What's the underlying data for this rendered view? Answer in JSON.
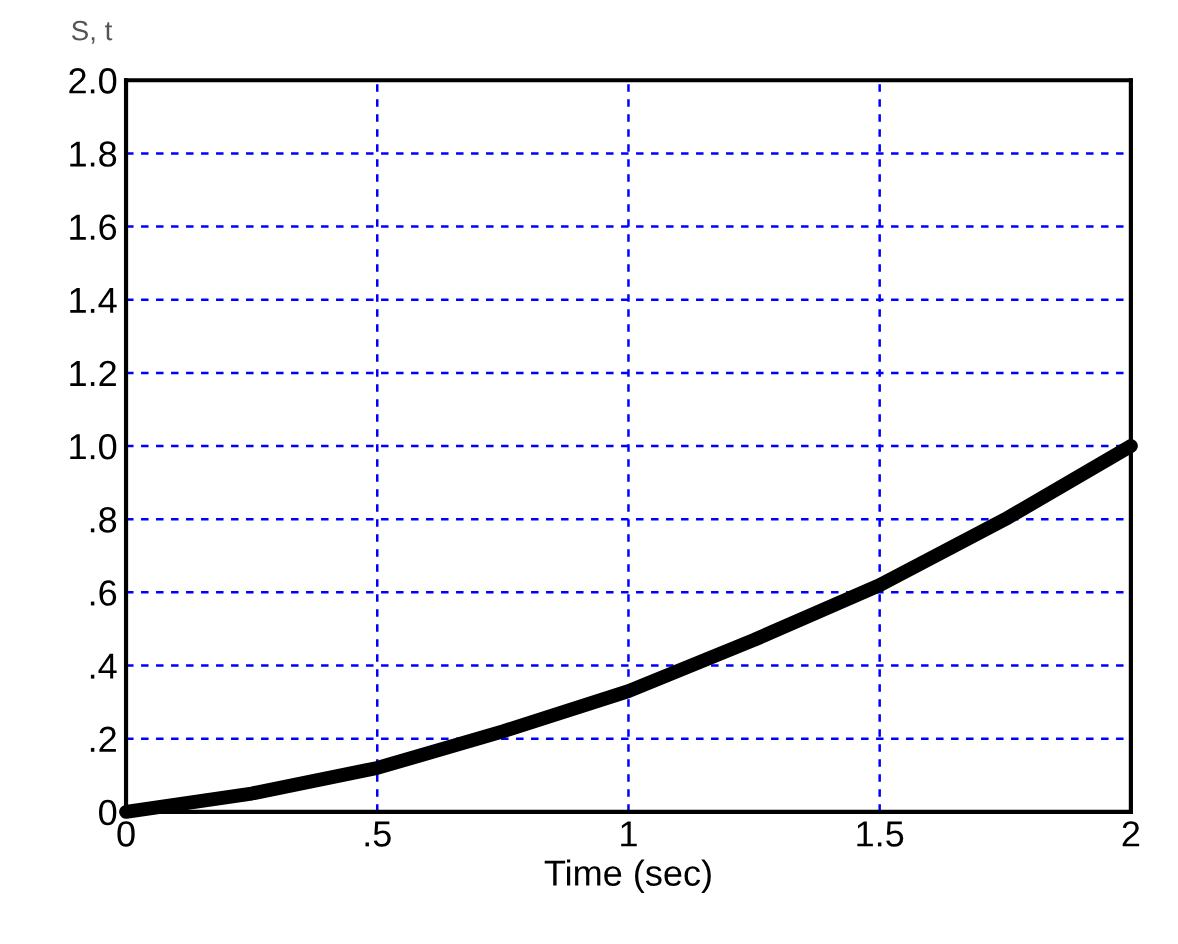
{
  "chart_data": {
    "type": "line",
    "title": "S, t",
    "xlabel": "Time (sec)",
    "series": [
      {
        "color": "#000000",
        "x": [
          0,
          0.25,
          0.5,
          0.75,
          1,
          1.25,
          1.5,
          1.75,
          2
        ],
        "values": [
          0,
          0.05,
          0.12,
          0.22,
          0.33,
          0.47,
          0.62,
          0.8,
          1.0
        ]
      }
    ],
    "xlim": [
      0,
      2
    ],
    "xticks": [
      0,
      {
        "value": 0.5,
        "label": ".5"
      },
      1,
      1.5,
      2
    ],
    "ylim": [
      0,
      2
    ],
    "yticks": [
      0,
      {
        "value": 0.2,
        "label": ".2"
      },
      {
        "value": 0.4,
        "label": ".4"
      },
      {
        "value": 0.6,
        "label": ".6"
      },
      {
        "value": 0.8,
        "label": ".8"
      },
      {
        "value": 1.0,
        "label": "1.0"
      },
      1.2,
      1.4,
      1.6,
      1.8,
      {
        "value": 2.0,
        "label": "2.0"
      }
    ],
    "grid": true,
    "line_style": "solid",
    "marker": "none"
  }
}
